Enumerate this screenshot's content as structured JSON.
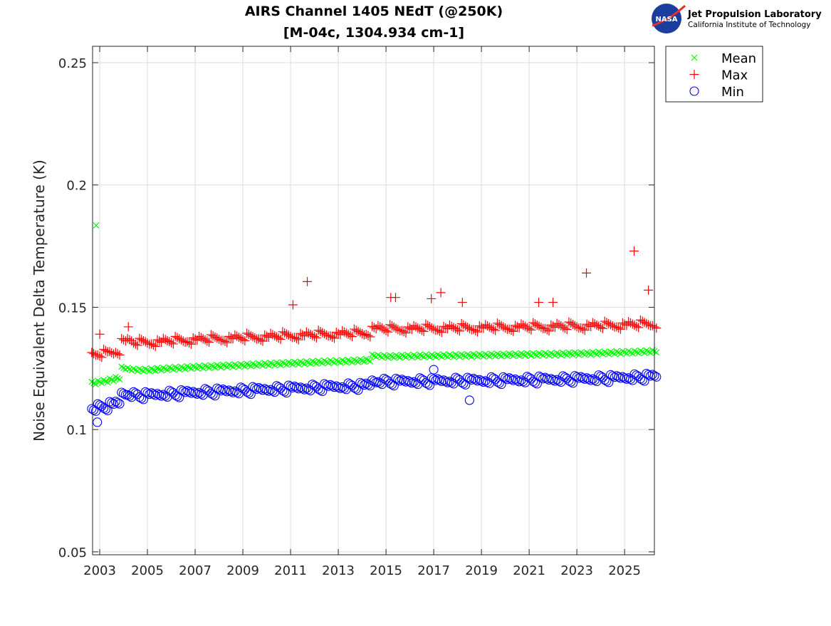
{
  "logo": {
    "emblem": "NASA",
    "line1": "Jet Propulsion Laboratory",
    "line2": "California Institute of Technology"
  },
  "chart_data": {
    "type": "scatter",
    "title": [
      "AIRS Channel 1405 NEdT (@250K)",
      "[M-04c, 1304.934 cm-1]"
    ],
    "xlabel": "",
    "ylabel": "Noise Equivalent Delta Temperature (K)",
    "xlim": [
      2002.7,
      2026.25
    ],
    "ylim": [
      0.0488,
      0.2567
    ],
    "xticks": [
      2003,
      2005,
      2007,
      2009,
      2011,
      2013,
      2015,
      2017,
      2019,
      2021,
      2023,
      2025
    ],
    "xtick_labels": [
      "2003",
      "2005",
      "2007",
      "2009",
      "2011",
      "2013",
      "2015",
      "2017",
      "2019",
      "2021",
      "2023",
      "2025"
    ],
    "yticks": [
      0.05,
      0.1,
      0.15,
      0.2,
      0.25
    ],
    "ytick_labels": [
      "0.05",
      "0.1",
      "0.15",
      "0.2",
      "0.25"
    ],
    "grid": true,
    "legend_position": "outside-top-right",
    "x": [
      2002.75,
      2003.0,
      2003.25,
      2003.5,
      2003.75,
      2004.0,
      2004.25,
      2004.5,
      2004.75,
      2005.0,
      2005.25,
      2005.5,
      2005.75,
      2006.0,
      2006.25,
      2006.5,
      2006.75,
      2007.0,
      2007.25,
      2007.5,
      2007.75,
      2008.0,
      2008.25,
      2008.5,
      2008.75,
      2009.0,
      2009.25,
      2009.5,
      2009.75,
      2010.0,
      2010.25,
      2010.5,
      2010.75,
      2011.0,
      2011.25,
      2011.5,
      2011.75,
      2012.0,
      2012.25,
      2012.5,
      2012.75,
      2013.0,
      2013.25,
      2013.5,
      2013.75,
      2014.0,
      2014.25,
      2014.5,
      2014.75,
      2015.0,
      2015.25,
      2015.5,
      2015.75,
      2016.0,
      2016.25,
      2016.5,
      2016.75,
      2017.0,
      2017.25,
      2017.5,
      2017.75,
      2018.0,
      2018.25,
      2018.5,
      2018.75,
      2019.0,
      2019.25,
      2019.5,
      2019.75,
      2020.0,
      2020.25,
      2020.5,
      2020.75,
      2021.0,
      2021.25,
      2021.5,
      2021.75,
      2022.0,
      2022.25,
      2022.5,
      2022.75,
      2023.0,
      2023.25,
      2023.5,
      2023.75,
      2024.0,
      2024.25,
      2024.5,
      2024.75,
      2025.0,
      2025.25,
      2025.5,
      2025.75,
      2026.0,
      2026.25
    ],
    "series": [
      {
        "name": "Mean",
        "marker": "x",
        "color": "#00ff00",
        "values": [
          0.119,
          0.1195,
          0.1198,
          0.1204,
          0.121,
          0.1252,
          0.1247,
          0.1244,
          0.1243,
          0.1244,
          0.1245,
          0.1247,
          0.1248,
          0.125,
          0.1251,
          0.1252,
          0.1254,
          0.1255,
          0.1256,
          0.1257,
          0.1258,
          0.1259,
          0.126,
          0.1261,
          0.1262,
          0.1263,
          0.1264,
          0.1265,
          0.1266,
          0.1267,
          0.1268,
          0.1269,
          0.127,
          0.1271,
          0.1272,
          0.1273,
          0.1274,
          0.1275,
          0.1276,
          0.1277,
          0.1278,
          0.1278,
          0.1279,
          0.128,
          0.1281,
          0.1282,
          0.1284,
          0.1302,
          0.13,
          0.1299,
          0.1299,
          0.1299,
          0.13,
          0.13,
          0.13,
          0.1301,
          0.1301,
          0.1301,
          0.1302,
          0.1302,
          0.1302,
          0.1303,
          0.1303,
          0.1303,
          0.1304,
          0.1304,
          0.1304,
          0.1305,
          0.1305,
          0.1305,
          0.1306,
          0.1306,
          0.1307,
          0.1307,
          0.1307,
          0.1308,
          0.1308,
          0.1308,
          0.1309,
          0.1309,
          0.131,
          0.131,
          0.1311,
          0.1311,
          0.1312,
          0.1313,
          0.1313,
          0.1314,
          0.1315,
          0.1316,
          0.1316,
          0.1317,
          0.1318,
          0.1319,
          0.132
        ],
        "outliers": [
          [
            2002.85,
            0.1835
          ]
        ]
      },
      {
        "name": "Max",
        "marker": "+",
        "color": "#ff0000",
        "values": [
          0.131,
          0.13,
          0.1323,
          0.1314,
          0.131,
          0.1367,
          0.1367,
          0.1349,
          0.1368,
          0.1354,
          0.1345,
          0.1362,
          0.1368,
          0.1355,
          0.1376,
          0.1362,
          0.1354,
          0.137,
          0.1376,
          0.1362,
          0.1383,
          0.1369,
          0.136,
          0.1376,
          0.1382,
          0.1368,
          0.1389,
          0.1375,
          0.1366,
          0.1382,
          0.1388,
          0.1374,
          0.1395,
          0.1381,
          0.1372,
          0.1388,
          0.1394,
          0.138,
          0.1401,
          0.1387,
          0.1378,
          0.1393,
          0.1399,
          0.1385,
          0.1406,
          0.1392,
          0.1384,
          0.1417,
          0.142,
          0.1404,
          0.1424,
          0.1409,
          0.14,
          0.1415,
          0.142,
          0.1406,
          0.1426,
          0.1411,
          0.1402,
          0.1417,
          0.1422,
          0.1408,
          0.1428,
          0.1413,
          0.1404,
          0.1419,
          0.1424,
          0.141,
          0.143,
          0.1415,
          0.1406,
          0.1421,
          0.1427,
          0.1412,
          0.1432,
          0.1418,
          0.1408,
          0.1423,
          0.1429,
          0.1414,
          0.1435,
          0.142,
          0.1411,
          0.1426,
          0.1432,
          0.1418,
          0.1438,
          0.1424,
          0.1415,
          0.1431,
          0.1436,
          0.1422,
          0.1443,
          0.1429,
          0.142
        ],
        "outliers": [
          [
            2003.0,
            0.139
          ],
          [
            2004.2,
            0.142
          ],
          [
            2011.1,
            0.151
          ],
          [
            2011.7,
            0.1605
          ],
          [
            2015.2,
            0.154
          ],
          [
            2015.4,
            0.154
          ],
          [
            2016.9,
            0.1535
          ],
          [
            2017.3,
            0.156
          ],
          [
            2018.2,
            0.152
          ],
          [
            2021.4,
            0.152
          ],
          [
            2022.0,
            0.152
          ],
          [
            2023.4,
            0.164
          ],
          [
            2025.4,
            0.173
          ],
          [
            2026.0,
            0.157
          ]
        ]
      },
      {
        "name": "Min",
        "marker": "o",
        "color": "#0000ff",
        "values": [
          0.108,
          0.11,
          0.1083,
          0.1109,
          0.111,
          0.1147,
          0.1137,
          0.1149,
          0.1128,
          0.1149,
          0.1145,
          0.1142,
          0.1138,
          0.1155,
          0.1136,
          0.1157,
          0.1154,
          0.115,
          0.1146,
          0.1162,
          0.1143,
          0.1164,
          0.116,
          0.1156,
          0.1152,
          0.1168,
          0.1149,
          0.117,
          0.1166,
          0.1162,
          0.1158,
          0.1174,
          0.1155,
          0.1176,
          0.1172,
          0.1168,
          0.1164,
          0.118,
          0.1161,
          0.1182,
          0.1178,
          0.1173,
          0.1169,
          0.1185,
          0.1166,
          0.1187,
          0.1184,
          0.1197,
          0.119,
          0.1204,
          0.1184,
          0.1204,
          0.12,
          0.1195,
          0.119,
          0.1206,
          0.1186,
          0.1206,
          0.1202,
          0.1197,
          0.1192,
          0.1208,
          0.1188,
          0.1208,
          0.1204,
          0.1199,
          0.1194,
          0.121,
          0.119,
          0.121,
          0.1206,
          0.1201,
          0.1197,
          0.1212,
          0.1192,
          0.1213,
          0.1208,
          0.1203,
          0.1199,
          0.1214,
          0.1195,
          0.1215,
          0.1211,
          0.1206,
          0.1202,
          0.1218,
          0.1198,
          0.1219,
          0.1215,
          0.1211,
          0.1206,
          0.1222,
          0.1203,
          0.1224,
          0.122
        ],
        "outliers": [
          [
            2002.9,
            0.103
          ],
          [
            2017.0,
            0.1245
          ],
          [
            2018.5,
            0.112
          ]
        ]
      }
    ]
  }
}
